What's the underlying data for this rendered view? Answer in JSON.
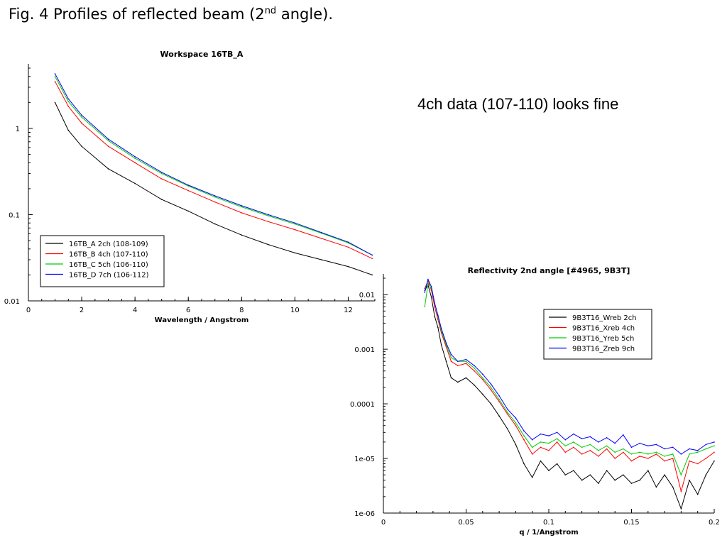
{
  "page": {
    "caption_main": "Fig. 4  Profiles of reflected beam (2",
    "caption_sup": "nd",
    "caption_end": " angle).",
    "note": "4ch data (107-110) looks fine"
  },
  "chart_data": [
    {
      "type": "line",
      "title": "Workspace 16TB_A",
      "xlabel": "Wavelength / Angstrom",
      "ylabel": "",
      "xlim": [
        0,
        13
      ],
      "ylim": [
        0.01,
        5
      ],
      "yscale": "log",
      "xticks": [
        0,
        2,
        4,
        6,
        8,
        10,
        12
      ],
      "yticks": [
        0.01,
        0.1,
        1
      ],
      "ytick_labels": [
        "0.01",
        "0.1",
        "1"
      ],
      "grid": false,
      "legend_position": "bottom-left",
      "x": [
        1,
        1.5,
        2,
        3,
        4,
        5,
        6,
        7,
        8,
        9,
        10,
        11,
        12,
        12.9
      ],
      "series": [
        {
          "name": "16TB_A  2ch (108-109)",
          "color": "#000000",
          "values": [
            2.0,
            0.95,
            0.62,
            0.34,
            0.23,
            0.15,
            0.11,
            0.078,
            0.058,
            0.045,
            0.036,
            0.03,
            0.025,
            0.02
          ]
        },
        {
          "name": "16TB_B  4ch (107-110)",
          "color": "#ff0000",
          "values": [
            3.5,
            1.8,
            1.15,
            0.62,
            0.4,
            0.26,
            0.19,
            0.14,
            0.105,
            0.083,
            0.067,
            0.053,
            0.042,
            0.031
          ]
        },
        {
          "name": "16TB_C  5ch (106-110)",
          "color": "#00cc00",
          "values": [
            4.0,
            2.05,
            1.35,
            0.72,
            0.45,
            0.3,
            0.215,
            0.16,
            0.123,
            0.097,
            0.078,
            0.061,
            0.047,
            0.034
          ]
        },
        {
          "name": "16TB_D  7ch (106-112)",
          "color": "#0000ff",
          "values": [
            4.3,
            2.2,
            1.42,
            0.75,
            0.47,
            0.31,
            0.22,
            0.165,
            0.127,
            0.1,
            0.08,
            0.062,
            0.048,
            0.034
          ]
        }
      ]
    },
    {
      "type": "line",
      "title": "Reflectivity  2nd angle  [#4965, 9B3T]",
      "xlabel": "q / 1/Angstrom",
      "ylabel": "",
      "xlim": [
        0,
        0.2
      ],
      "ylim": [
        1e-06,
        0.02
      ],
      "yscale": "log",
      "xticks": [
        0,
        0.05,
        0.1,
        0.15,
        0.2
      ],
      "xtick_labels": [
        "0",
        "0.05",
        "0.1",
        "0.15",
        "0.2"
      ],
      "yticks": [
        1e-06,
        1e-05,
        0.0001,
        0.001,
        0.01
      ],
      "ytick_labels": [
        "1e-06",
        "1e-05",
        "0.0001",
        "0.001",
        "0.01"
      ],
      "grid": false,
      "legend_position": "top-right",
      "x": [
        0.025,
        0.027,
        0.029,
        0.031,
        0.033,
        0.035,
        0.038,
        0.041,
        0.045,
        0.05,
        0.055,
        0.06,
        0.065,
        0.07,
        0.075,
        0.08,
        0.085,
        0.09,
        0.095,
        0.1,
        0.105,
        0.11,
        0.115,
        0.12,
        0.125,
        0.13,
        0.135,
        0.14,
        0.145,
        0.15,
        0.155,
        0.16,
        0.165,
        0.17,
        0.175,
        0.18,
        0.185,
        0.19,
        0.195,
        0.2
      ],
      "series": [
        {
          "name": "9B3T16_Wreb  2ch",
          "color": "#000000",
          "values": [
            0.012,
            0.015,
            0.009,
            0.004,
            0.0025,
            0.0012,
            0.0006,
            0.0003,
            0.00025,
            0.0003,
            0.00022,
            0.00015,
            0.0001,
            6e-05,
            3.5e-05,
            1.8e-05,
            8e-06,
            4.5e-06,
            9e-06,
            6e-06,
            8e-06,
            5e-06,
            6e-06,
            4e-06,
            5e-06,
            3.5e-06,
            6e-06,
            4e-06,
            5e-06,
            3.5e-06,
            4e-06,
            6e-06,
            3e-06,
            5e-06,
            3e-06,
            1.2e-06,
            4e-06,
            2.2e-06,
            5e-06,
            9e-06
          ]
        },
        {
          "name": "9B3T16_Xreb  4ch",
          "color": "#ff0000",
          "values": [
            0.013,
            0.018,
            0.012,
            0.006,
            0.0035,
            0.002,
            0.0011,
            0.0006,
            0.0005,
            0.00055,
            0.0004,
            0.00028,
            0.00018,
            0.00011,
            6.5e-05,
            4e-05,
            2.2e-05,
            1.2e-05,
            1.6e-05,
            1.4e-05,
            2e-05,
            1.3e-05,
            1.6e-05,
            1.2e-05,
            1.4e-05,
            1.1e-05,
            1.5e-05,
            1e-05,
            1.3e-05,
            9e-06,
            1.1e-05,
            1e-05,
            1.2e-05,
            9e-06,
            1e-05,
            2.5e-06,
            9e-06,
            8e-06,
            1e-05,
            1.3e-05
          ]
        },
        {
          "name": "9B3T16_Yreb  5ch",
          "color": "#00cc00",
          "values": [
            0.006,
            0.016,
            0.013,
            0.007,
            0.004,
            0.0022,
            0.0012,
            0.0007,
            0.0006,
            0.0006,
            0.00045,
            0.0003,
            0.0002,
            0.00012,
            7e-05,
            4.5e-05,
            2.6e-05,
            1.6e-05,
            2e-05,
            1.9e-05,
            2.3e-05,
            1.7e-05,
            2e-05,
            1.6e-05,
            1.8e-05,
            1.4e-05,
            1.7e-05,
            1.3e-05,
            1.5e-05,
            1.2e-05,
            1.3e-05,
            1.2e-05,
            1.3e-05,
            1.1e-05,
            1.2e-05,
            5e-06,
            1.2e-05,
            1.3e-05,
            1.5e-05,
            1.7e-05
          ]
        },
        {
          "name": "9B3T16_Zreb  9ch",
          "color": "#0000ff",
          "values": [
            0.011,
            0.019,
            0.014,
            0.007,
            0.0042,
            0.0024,
            0.0013,
            0.0008,
            0.0006,
            0.00065,
            0.0005,
            0.00035,
            0.00023,
            0.00014,
            8e-05,
            5.5e-05,
            3.2e-05,
            2.2e-05,
            2.8e-05,
            2.6e-05,
            3e-05,
            2.2e-05,
            2.8e-05,
            2.3e-05,
            2.5e-05,
            2e-05,
            2.4e-05,
            1.9e-05,
            2.7e-05,
            1.6e-05,
            1.9e-05,
            1.7e-05,
            1.8e-05,
            1.5e-05,
            1.6e-05,
            1.2e-05,
            1.5e-05,
            1.4e-05,
            1.8e-05,
            2e-05
          ]
        }
      ]
    }
  ]
}
